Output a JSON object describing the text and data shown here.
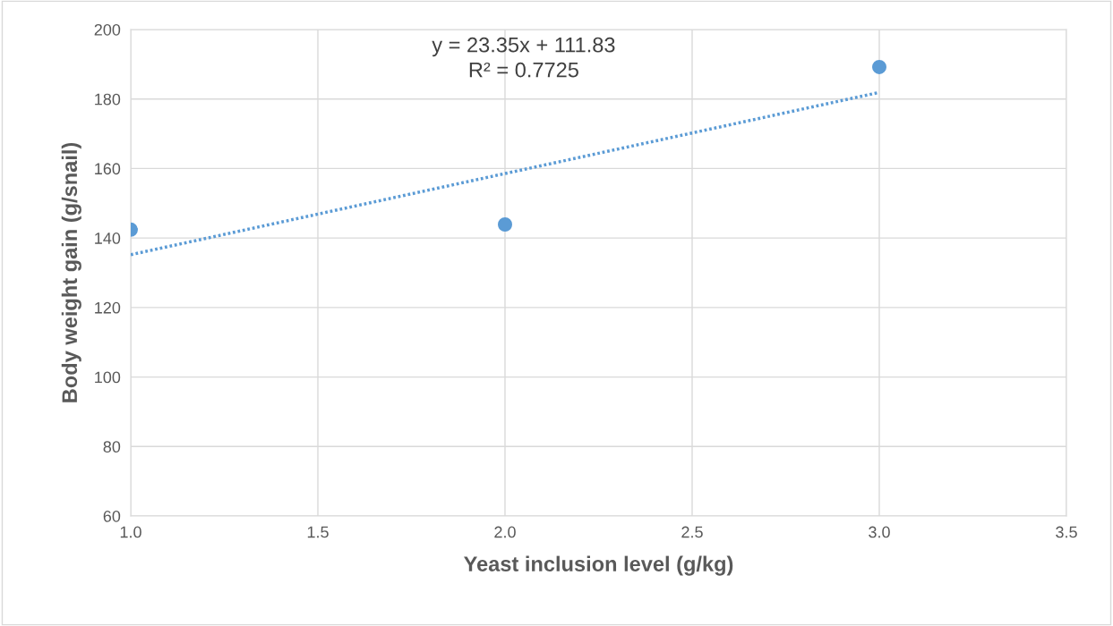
{
  "chart_data": {
    "type": "scatter",
    "xlabel": "Yeast inclusion level (g/kg)",
    "ylabel": "Body weight gain (g/snail)",
    "series": [
      {
        "color": "#5b9bd5",
        "x": [
          1,
          2,
          3
        ],
        "values": [
          142.4,
          143.9,
          189.2
        ],
        "marker": "circle"
      },
      {
        "type": "line",
        "color": "#5b9bd5",
        "x": [
          1,
          3
        ],
        "values": [
          135.2,
          181.9
        ],
        "line_style": "dotted",
        "marker": "none"
      }
    ],
    "annotations": [
      "y = 23.35x + 111.83\nR² = 0.7725"
    ],
    "xlim": [
      1.0,
      3.5
    ],
    "xticks": [
      {
        "value": 1.0,
        "label": "1.0"
      },
      {
        "value": 1.5,
        "label": "1.5"
      },
      {
        "value": 2.0,
        "label": "2.0"
      },
      {
        "value": 2.5,
        "label": "2.5"
      },
      {
        "value": 3.0,
        "label": "3.0"
      },
      {
        "value": 3.5,
        "label": "3.5"
      }
    ],
    "ylim": [
      60,
      200
    ],
    "yticks": [
      60,
      80,
      100,
      120,
      140,
      160,
      180,
      200
    ],
    "grid": true
  }
}
